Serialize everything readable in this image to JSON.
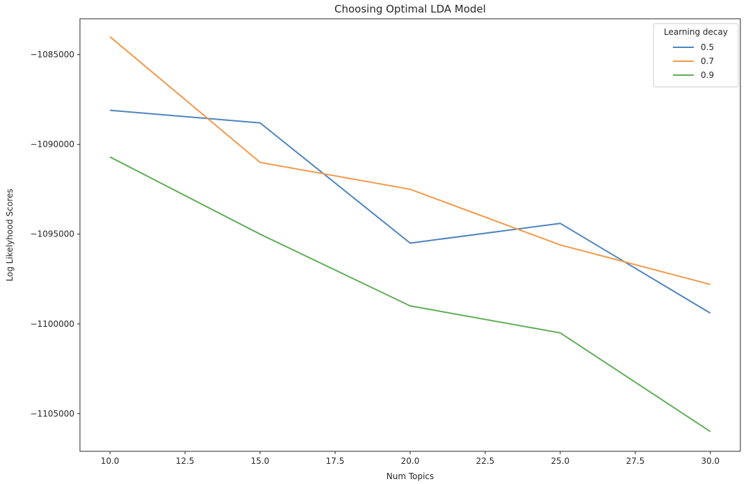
{
  "chart_data": {
    "type": "line",
    "title": "Choosing Optimal LDA Model",
    "xlabel": "Num Topics",
    "ylabel": "Log Likelyhood Scores",
    "x": [
      10,
      15,
      20,
      25,
      30
    ],
    "xlim": [
      9.0,
      31.0
    ],
    "ylim": [
      -1107100,
      -1083000
    ],
    "xticks": [
      10.0,
      12.5,
      15.0,
      17.5,
      20.0,
      22.5,
      25.0,
      27.5,
      30.0
    ],
    "xtick_labels": [
      "10.0",
      "12.5",
      "15.0",
      "17.5",
      "20.0",
      "22.5",
      "25.0",
      "27.5",
      "30.0"
    ],
    "yticks": [
      -1085000,
      -1090000,
      -1095000,
      -1100000,
      -1105000
    ],
    "ytick_labels": [
      "−1085000",
      "−1090000",
      "−1095000",
      "−1100000",
      "−1105000"
    ],
    "grid": false,
    "legend": {
      "title": "Learning decay",
      "placement": "top-right"
    },
    "series": [
      {
        "name": "0.5",
        "color": "#4c84be",
        "values": [
          -1088100,
          -1088800,
          -1095500,
          -1094400,
          -1099400
        ]
      },
      {
        "name": "0.7",
        "color": "#f2994a",
        "values": [
          -1084000,
          -1091000,
          -1092500,
          -1095600,
          -1097800
        ]
      },
      {
        "name": "0.9",
        "color": "#5fad56",
        "values": [
          -1090700,
          -1095000,
          -1099000,
          -1100500,
          -1106000
        ]
      }
    ]
  }
}
